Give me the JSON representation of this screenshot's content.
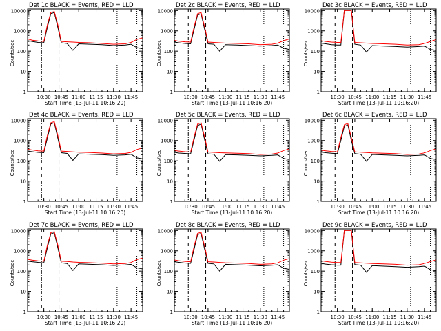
{
  "figure": {
    "xlabel": "Start Time (13-Jul-11 10:16:20)",
    "ylabel": "Counts/sec",
    "yticks": [
      "1",
      "10",
      "100",
      "1000",
      "10000"
    ],
    "xticks": [
      "10:30",
      "10:45",
      "11:00",
      "11:15",
      "11:30",
      "11:45"
    ],
    "colors": {
      "events": "#000000",
      "lld": "#ff0000",
      "axes": "#000000"
    }
  },
  "chart_data": [
    {
      "type": "line",
      "title": "Det 1c  BLACK = Events, RED = LLD",
      "xlabel": "Start Time (13-Jul-11 10:16:20)",
      "ylabel": "Counts/sec",
      "xlim": [
        "10:16",
        "11:55"
      ],
      "ylim": [
        1,
        12000
      ],
      "yscale": "log",
      "x": [
        "10:16",
        "10:20",
        "10:25",
        "10:30",
        "10:33",
        "10:36",
        "10:39",
        "10:42",
        "10:45",
        "10:50",
        "10:55",
        "11:00",
        "11:10",
        "11:20",
        "11:30",
        "11:40",
        "11:45",
        "11:50",
        "11:55"
      ],
      "series": [
        {
          "name": "Events",
          "values": [
            330,
            300,
            270,
            260,
            1500,
            7000,
            8000,
            1500,
            260,
            240,
            110,
            230,
            220,
            210,
            190,
            200,
            220,
            150,
            130
          ]
        },
        {
          "name": "LLD",
          "values": [
            400,
            350,
            320,
            300,
            2000,
            8000,
            9000,
            2000,
            300,
            290,
            280,
            270,
            260,
            240,
            220,
            230,
            270,
            380,
            450
          ]
        }
      ],
      "vlines": {
        "dash_dot": [
          "10:28"
        ],
        "dashed": [
          "10:43"
        ],
        "dotted": [
          "11:33",
          "11:50"
        ]
      }
    },
    {
      "type": "line",
      "title": "Det 2c  BLACK = Events, RED = LLD",
      "xlabel": "Start Time (13-Jul-11 10:16:20)",
      "ylabel": "Counts/sec",
      "xlim": [
        "10:16",
        "11:55"
      ],
      "ylim": [
        1,
        12000
      ],
      "yscale": "log",
      "x": [
        "10:16",
        "10:20",
        "10:25",
        "10:30",
        "10:33",
        "10:36",
        "10:39",
        "10:42",
        "10:45",
        "10:50",
        "10:55",
        "11:00",
        "11:10",
        "11:20",
        "11:30",
        "11:40",
        "11:45",
        "11:50",
        "11:55"
      ],
      "series": [
        {
          "name": "Events",
          "values": [
            280,
            260,
            240,
            230,
            1200,
            6000,
            7000,
            1200,
            230,
            220,
            100,
            210,
            200,
            190,
            180,
            190,
            200,
            140,
            120
          ]
        },
        {
          "name": "LLD",
          "values": [
            340,
            310,
            290,
            280,
            1600,
            7000,
            8000,
            1600,
            280,
            270,
            260,
            250,
            240,
            230,
            210,
            220,
            250,
            330,
            400
          ]
        }
      ],
      "vlines": {
        "dash_dot": [
          "10:28"
        ],
        "dashed": [
          "10:43"
        ],
        "dotted": [
          "11:33",
          "11:50"
        ]
      }
    },
    {
      "type": "line",
      "title": "Det 3c  BLACK = Events, RED = LLD",
      "xlabel": "Start Time (13-Jul-11 10:16:20)",
      "ylabel": "Counts/sec",
      "xlim": [
        "10:16",
        "11:55"
      ],
      "ylim": [
        1,
        12000
      ],
      "yscale": "log",
      "x": [
        "10:16",
        "10:20",
        "10:25",
        "10:30",
        "10:33",
        "10:36",
        "10:39",
        "10:42",
        "10:45",
        "10:50",
        "10:55",
        "11:00",
        "11:10",
        "11:20",
        "11:30",
        "11:40",
        "11:45",
        "11:50",
        "11:55"
      ],
      "series": [
        {
          "name": "Events",
          "values": [
            250,
            230,
            210,
            200,
            200,
            10000,
            10000,
            10000,
            220,
            200,
            90,
            190,
            180,
            170,
            160,
            170,
            180,
            120,
            110
          ]
        },
        {
          "name": "LLD",
          "values": [
            330,
            300,
            280,
            270,
            270,
            10000,
            10000,
            10000,
            270,
            260,
            250,
            240,
            230,
            220,
            200,
            210,
            240,
            300,
            370
          ]
        }
      ],
      "vlines": {
        "dash_dot": [
          "10:28"
        ],
        "dashed": [
          "10:43"
        ],
        "dotted": [
          "11:33",
          "11:50"
        ]
      }
    },
    {
      "type": "line",
      "title": "Det 4c  BLACK = Events, RED = LLD",
      "xlabel": "Start Time (13-Jul-11 10:16:20)",
      "ylabel": "Counts/sec",
      "xlim": [
        "10:16",
        "11:55"
      ],
      "ylim": [
        1,
        12000
      ],
      "yscale": "log",
      "x": [
        "10:16",
        "10:20",
        "10:25",
        "10:30",
        "10:33",
        "10:36",
        "10:39",
        "10:42",
        "10:45",
        "10:50",
        "10:55",
        "11:00",
        "11:10",
        "11:20",
        "11:30",
        "11:40",
        "11:45",
        "11:50",
        "11:55"
      ],
      "series": [
        {
          "name": "Events",
          "values": [
            300,
            280,
            260,
            250,
            1300,
            6500,
            7500,
            1300,
            250,
            230,
            105,
            220,
            210,
            200,
            185,
            195,
            210,
            140,
            125
          ]
        },
        {
          "name": "LLD",
          "values": [
            370,
            340,
            310,
            300,
            1800,
            7500,
            8500,
            1800,
            300,
            290,
            275,
            265,
            255,
            240,
            220,
            230,
            260,
            360,
            430
          ]
        }
      ],
      "vlines": {
        "dash_dot": [
          "10:28"
        ],
        "dashed": [
          "10:43"
        ],
        "dotted": [
          "11:33",
          "11:50"
        ]
      }
    },
    {
      "type": "line",
      "title": "Det 5c  BLACK = Events, RED = LLD",
      "xlabel": "Start Time (13-Jul-11 10:16:20)",
      "ylabel": "Counts/sec",
      "xlim": [
        "10:16",
        "11:55"
      ],
      "ylim": [
        1,
        12000
      ],
      "yscale": "log",
      "x": [
        "10:16",
        "10:20",
        "10:25",
        "10:30",
        "10:33",
        "10:36",
        "10:39",
        "10:42",
        "10:45",
        "10:50",
        "10:55",
        "11:00",
        "11:10",
        "11:20",
        "11:30",
        "11:40",
        "11:45",
        "11:50",
        "11:55"
      ],
      "series": [
        {
          "name": "Events",
          "values": [
            260,
            240,
            230,
            220,
            1100,
            5500,
            6500,
            1100,
            220,
            210,
            95,
            200,
            195,
            185,
            175,
            185,
            195,
            130,
            115
          ]
        },
        {
          "name": "LLD",
          "values": [
            320,
            300,
            280,
            270,
            1500,
            6500,
            7500,
            1500,
            270,
            260,
            250,
            245,
            235,
            225,
            205,
            215,
            240,
            320,
            390
          ]
        }
      ],
      "vlines": {
        "dash_dot": [
          "10:28"
        ],
        "dashed": [
          "10:43"
        ],
        "dotted": [
          "11:33",
          "11:50"
        ]
      }
    },
    {
      "type": "line",
      "title": "Det 6c  BLACK = Events, RED = LLD",
      "xlabel": "Start Time (13-Jul-11 10:16:20)",
      "ylabel": "Counts/sec",
      "xlim": [
        "10:16",
        "11:55"
      ],
      "ylim": [
        1,
        12000
      ],
      "yscale": "log",
      "x": [
        "10:16",
        "10:20",
        "10:25",
        "10:30",
        "10:33",
        "10:36",
        "10:39",
        "10:42",
        "10:45",
        "10:50",
        "10:55",
        "11:00",
        "11:10",
        "11:20",
        "11:30",
        "11:40",
        "11:45",
        "11:50",
        "11:55"
      ],
      "series": [
        {
          "name": "Events",
          "values": [
            270,
            250,
            235,
            225,
            1000,
            5000,
            6000,
            1000,
            225,
            210,
            95,
            205,
            195,
            185,
            175,
            185,
            195,
            130,
            115
          ]
        },
        {
          "name": "LLD",
          "values": [
            330,
            310,
            290,
            275,
            1400,
            6000,
            7000,
            1400,
            275,
            265,
            255,
            245,
            235,
            225,
            205,
            215,
            245,
            320,
            390
          ]
        }
      ],
      "vlines": {
        "dash_dot": [
          "10:28"
        ],
        "dashed": [
          "10:43"
        ],
        "dotted": [
          "11:33",
          "11:50"
        ]
      }
    },
    {
      "type": "line",
      "title": "Det 7c  BLACK = Events, RED = LLD",
      "xlabel": "Start Time (13-Jul-11 10:16:20)",
      "ylabel": "Counts/sec",
      "xlim": [
        "10:16",
        "11:55"
      ],
      "ylim": [
        1,
        12000
      ],
      "yscale": "log",
      "x": [
        "10:16",
        "10:20",
        "10:25",
        "10:30",
        "10:33",
        "10:36",
        "10:39",
        "10:42",
        "10:45",
        "10:50",
        "10:55",
        "11:00",
        "11:10",
        "11:20",
        "11:30",
        "11:40",
        "11:45",
        "11:50",
        "11:55"
      ],
      "series": [
        {
          "name": "Events",
          "values": [
            310,
            290,
            270,
            255,
            1400,
            6800,
            7800,
            1400,
            255,
            235,
            108,
            225,
            215,
            205,
            190,
            200,
            215,
            145,
            128
          ]
        },
        {
          "name": "LLD",
          "values": [
            380,
            350,
            320,
            305,
            1900,
            7800,
            8800,
            1900,
            305,
            295,
            280,
            270,
            260,
            245,
            225,
            235,
            265,
            370,
            440
          ]
        }
      ],
      "vlines": {
        "dash_dot": [
          "10:28"
        ],
        "dashed": [
          "10:43"
        ],
        "dotted": [
          "11:33",
          "11:50"
        ]
      }
    },
    {
      "type": "line",
      "title": "Det 8c  BLACK = Events, RED = LLD",
      "xlabel": "Start Time (13-Jul-11 10:16:20)",
      "ylabel": "Counts/sec",
      "xlim": [
        "10:16",
        "11:55"
      ],
      "ylim": [
        1,
        12000
      ],
      "yscale": "log",
      "x": [
        "10:16",
        "10:20",
        "10:25",
        "10:30",
        "10:33",
        "10:36",
        "10:39",
        "10:42",
        "10:45",
        "10:50",
        "10:55",
        "11:00",
        "11:10",
        "11:20",
        "11:30",
        "11:40",
        "11:45",
        "11:50",
        "11:55"
      ],
      "series": [
        {
          "name": "Events",
          "values": [
            290,
            270,
            250,
            240,
            1200,
            6200,
            7200,
            1200,
            240,
            225,
            100,
            215,
            205,
            195,
            182,
            192,
            205,
            138,
            122
          ]
        },
        {
          "name": "LLD",
          "values": [
            355,
            325,
            300,
            290,
            1700,
            7200,
            8200,
            1700,
            290,
            280,
            268,
            258,
            248,
            236,
            215,
            225,
            255,
            345,
            415
          ]
        }
      ],
      "vlines": {
        "dash_dot": [
          "10:28"
        ],
        "dashed": [
          "10:43"
        ],
        "dotted": [
          "11:33",
          "11:50"
        ]
      }
    },
    {
      "type": "line",
      "title": "Det 9c  BLACK = Events, RED = LLD",
      "xlabel": "Start Time (13-Jul-11 10:16:20)",
      "ylabel": "Counts/sec",
      "xlim": [
        "10:16",
        "11:55"
      ],
      "ylim": [
        1,
        12000
      ],
      "yscale": "log",
      "x": [
        "10:16",
        "10:20",
        "10:25",
        "10:30",
        "10:33",
        "10:36",
        "10:39",
        "10:42",
        "10:45",
        "10:50",
        "10:55",
        "11:00",
        "11:10",
        "11:20",
        "11:30",
        "11:40",
        "11:45",
        "11:50",
        "11:55"
      ],
      "series": [
        {
          "name": "Events",
          "values": [
            240,
            220,
            205,
            195,
            195,
            10000,
            10000,
            10000,
            210,
            195,
            88,
            185,
            175,
            165,
            155,
            165,
            175,
            118,
            105
          ]
        },
        {
          "name": "LLD",
          "values": [
            320,
            295,
            275,
            265,
            265,
            10000,
            10000,
            10000,
            265,
            255,
            245,
            235,
            225,
            215,
            195,
            205,
            235,
            295,
            360
          ]
        }
      ],
      "vlines": {
        "dash_dot": [
          "10:28"
        ],
        "dashed": [
          "10:43"
        ],
        "dotted": [
          "11:33",
          "11:50"
        ]
      }
    }
  ]
}
